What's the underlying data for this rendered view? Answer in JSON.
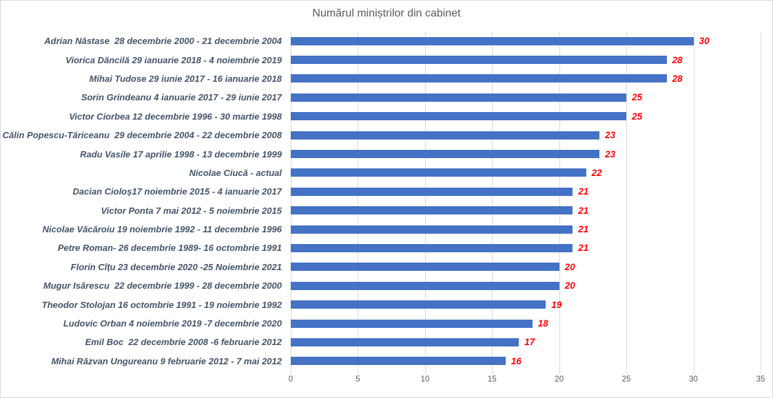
{
  "chart_data": {
    "type": "bar",
    "orientation": "horizontal",
    "title": "Numărul miniștrilor din cabinet",
    "categories": [
      "Adrian Năstase  28 decembrie 2000 - 21 decembrie 2004",
      "Viorica Dăncilă 29 ianuarie 2018 - 4 noiembrie 2019",
      "Mihai Tudose 29 iunie 2017 - 16 ianuarie 2018",
      "Sorin Grindeanu 4 ianuarie 2017 - 29 iunie 2017",
      "Victor Ciorbea 12 decembrie 1996 - 30 martie 1998",
      "Călin Popescu-Tăriceanu  29 decembrie 2004 - 22 decembrie 2008",
      "Radu Vasile 17 aprilie 1998 - 13 decembrie 1999",
      "Nicolae Ciucă - actual",
      "Dacian Cioloș17 noiembrie 2015 - 4 ianuarie 2017",
      "Victor Ponta 7 mai 2012 - 5 noiembrie 2015",
      "Nicolae Văcăroiu 19 noiembrie 1992 - 11 decembrie 1996",
      "Petre Roman- 26 decembrie 1989- 16 octombrie 1991",
      "Florin Cîțu 23 decembrie 2020 -25 Noiembrie 2021",
      "Mugur Isărescu  22 decembrie 1999 - 28 decembrie 2000",
      "Theodor Stolojan 16 octombrie 1991 - 19 noiembrie 1992",
      "Ludovic Orban 4 noiembrie 2019 -7 decembrie 2020",
      "Emil Boc  22 decembrie 2008 -6 februarie 2012",
      "Mihai Răzvan Ungureanu 9 februarie 2012 - 7 mai 2012"
    ],
    "values": [
      30,
      28,
      28,
      25,
      25,
      23,
      23,
      22,
      21,
      21,
      21,
      21,
      20,
      20,
      19,
      18,
      17,
      16
    ],
    "xlim": [
      0,
      35
    ],
    "x_ticks": [
      0,
      5,
      10,
      15,
      20,
      25,
      30,
      35
    ],
    "grid": true,
    "legend": "none",
    "xlabel": "",
    "ylabel": "",
    "colors": {
      "bar": "#4472c4",
      "value_label": "#ff0000",
      "category_label": "#44546a",
      "title": "#595959",
      "axis_tick_label": "#595959",
      "gridline": "#d9d9d9",
      "chart_border": "#d9d9d9",
      "background": "#ffffff"
    }
  }
}
